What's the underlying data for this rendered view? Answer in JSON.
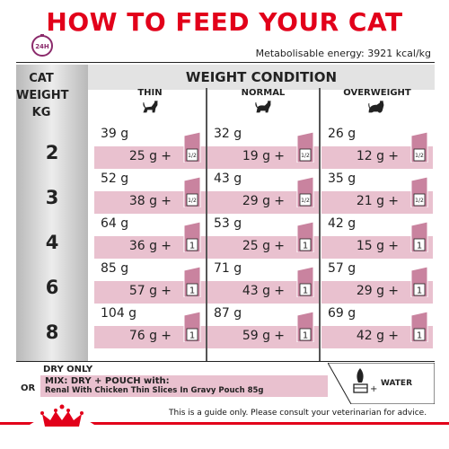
{
  "title": "HOW TO FEED YOUR CAT",
  "clock_label": "24H",
  "energy": "Metabolisable energy: 3921 kcal/kg",
  "cat_weight_header": [
    "CAT",
    "WEIGHT",
    "KG"
  ],
  "weight_condition_title": "WEIGHT CONDITION",
  "columns": [
    "THIN",
    "NORMAL",
    "OVERWEIGHT"
  ],
  "rows": [
    {
      "weight": "2",
      "cells": [
        {
          "dry": "39 g",
          "mix": "25 g",
          "pouch": "1/2"
        },
        {
          "dry": "32 g",
          "mix": "19 g",
          "pouch": "1/2"
        },
        {
          "dry": "26 g",
          "mix": "12 g",
          "pouch": "1/2"
        }
      ]
    },
    {
      "weight": "3",
      "cells": [
        {
          "dry": "52 g",
          "mix": "38 g",
          "pouch": "1/2"
        },
        {
          "dry": "43 g",
          "mix": "29 g",
          "pouch": "1/2"
        },
        {
          "dry": "35 g",
          "mix": "21 g",
          "pouch": "1/2"
        }
      ]
    },
    {
      "weight": "4",
      "cells": [
        {
          "dry": "64 g",
          "mix": "36 g",
          "pouch": "1"
        },
        {
          "dry": "53 g",
          "mix": "25 g",
          "pouch": "1"
        },
        {
          "dry": "42 g",
          "mix": "15 g",
          "pouch": "1"
        }
      ]
    },
    {
      "weight": "6",
      "cells": [
        {
          "dry": "85 g",
          "mix": "57 g",
          "pouch": "1"
        },
        {
          "dry": "71 g",
          "mix": "43 g",
          "pouch": "1"
        },
        {
          "dry": "57 g",
          "mix": "29 g",
          "pouch": "1"
        }
      ]
    },
    {
      "weight": "8",
      "cells": [
        {
          "dry": "104 g",
          "mix": "76 g",
          "pouch": "1"
        },
        {
          "dry": "87 g",
          "mix": "59 g",
          "pouch": "1"
        },
        {
          "dry": "69 g",
          "mix": "42 g",
          "pouch": "1"
        }
      ]
    }
  ],
  "legend": {
    "dry_only": "DRY ONLY",
    "or": "OR",
    "mix": "MIX: DRY + POUCH with:",
    "pouch_name": "Renal With Chicken Thin Slices In Gravy Pouch 85g",
    "water": "WATER"
  },
  "disclaimer": "This is a guide only. Please consult your veterinarian for advice.",
  "colors": {
    "red": "#e2001a",
    "pink": "#e9c1cf",
    "purple": "#8b2a6b"
  }
}
